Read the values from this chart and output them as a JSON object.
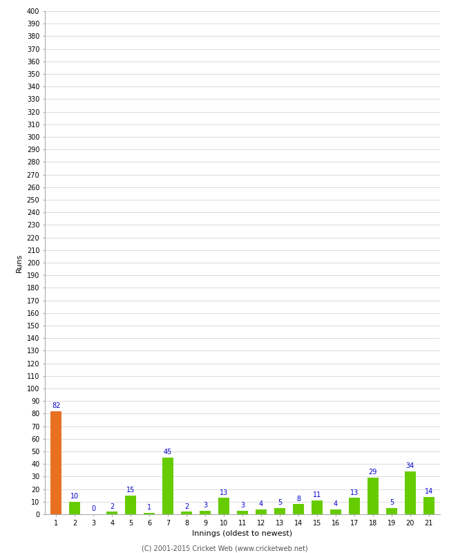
{
  "innings": [
    1,
    2,
    3,
    4,
    5,
    6,
    7,
    8,
    9,
    10,
    11,
    12,
    13,
    14,
    15,
    16,
    17,
    18,
    19,
    20,
    21
  ],
  "runs": [
    82,
    10,
    0,
    2,
    15,
    1,
    45,
    2,
    3,
    13,
    3,
    4,
    5,
    8,
    11,
    4,
    13,
    29,
    5,
    34,
    14
  ],
  "bar_colors": [
    "#e87020",
    "#66cc00",
    "#66cc00",
    "#66cc00",
    "#66cc00",
    "#66cc00",
    "#66cc00",
    "#66cc00",
    "#66cc00",
    "#66cc00",
    "#66cc00",
    "#66cc00",
    "#66cc00",
    "#66cc00",
    "#66cc00",
    "#66cc00",
    "#66cc00",
    "#66cc00",
    "#66cc00",
    "#66cc00",
    "#66cc00"
  ],
  "xlabel": "Innings (oldest to newest)",
  "ylabel": "Runs",
  "ylim": [
    0,
    400
  ],
  "label_color": "#0000cc",
  "background_color": "#ffffff",
  "grid_color": "#cccccc",
  "footer": "(C) 2001-2015 Cricket Web (www.cricketweb.net)",
  "bar_width": 0.6,
  "tick_fontsize": 7,
  "axis_label_fontsize": 8,
  "footer_fontsize": 7
}
